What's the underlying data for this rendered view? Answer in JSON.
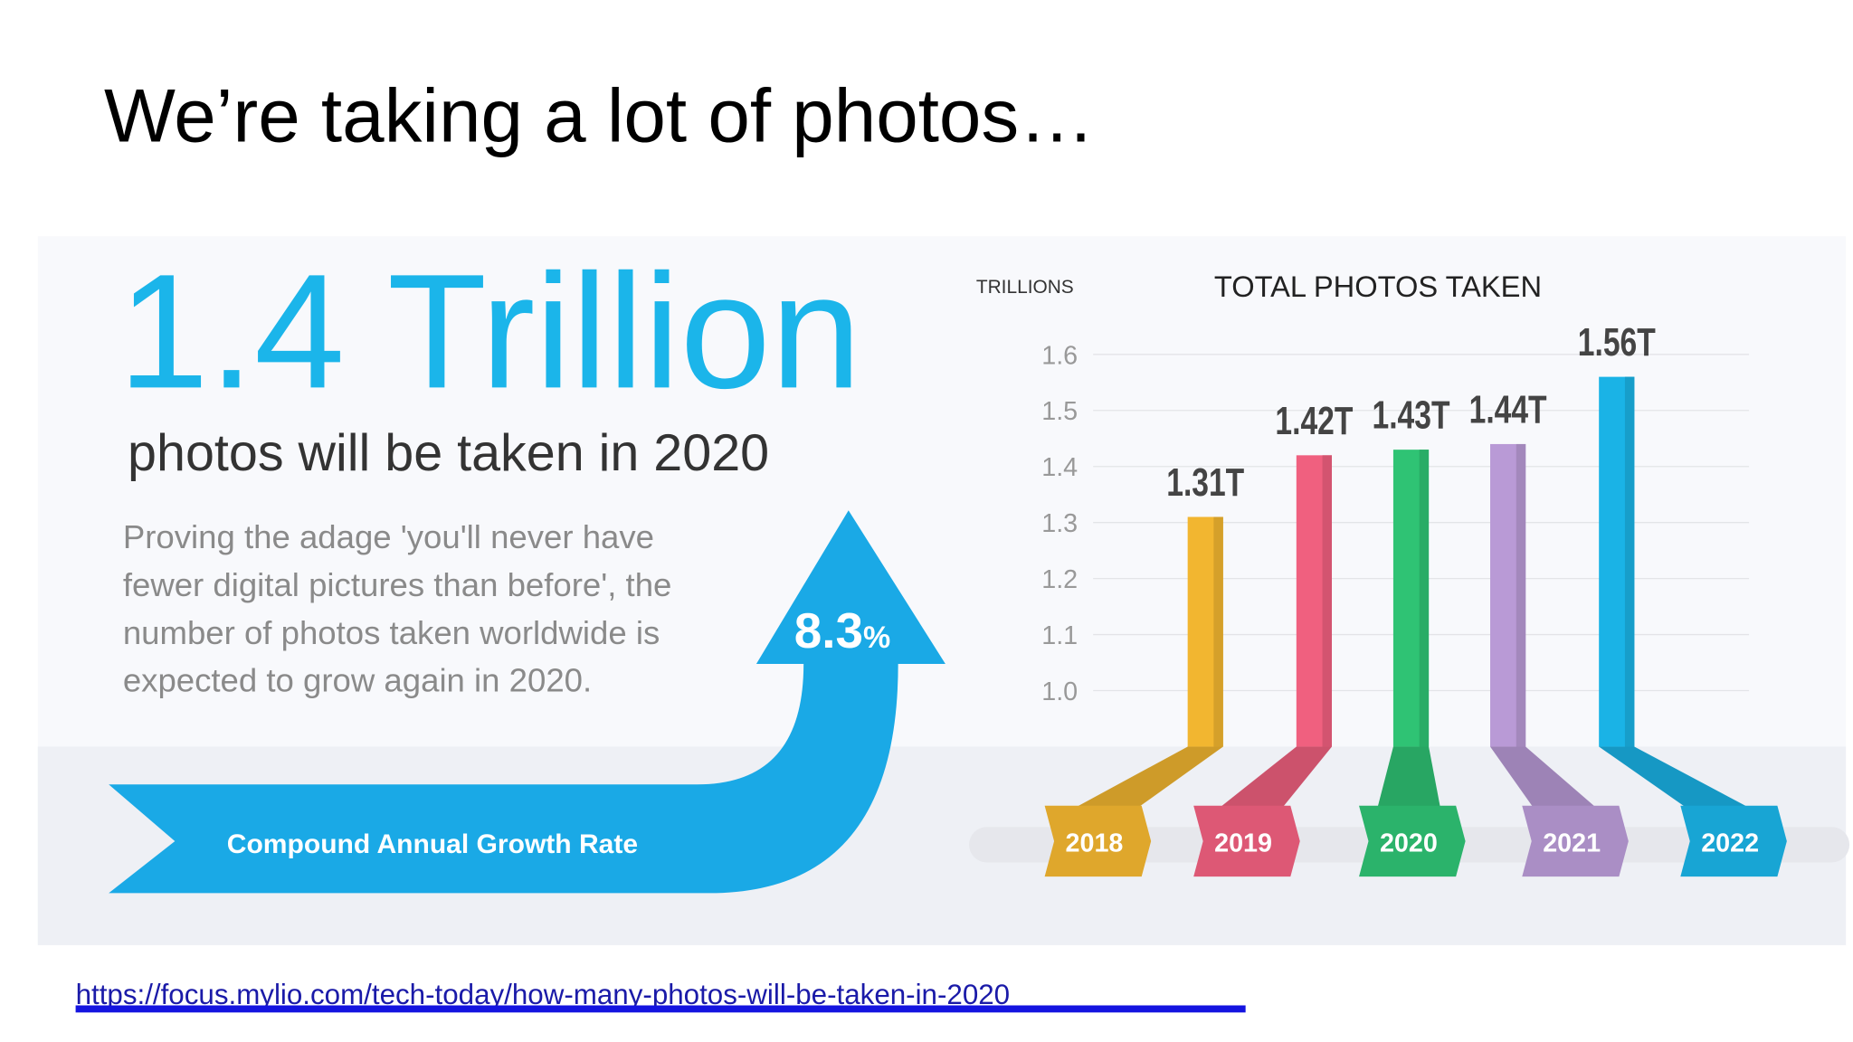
{
  "title": "We’re taking a lot of photos…",
  "headline": "1.4 Trillion",
  "subheadline": "photos will be taken in 2020",
  "body": [
    "Proving the adage 'you'll never have",
    "fewer digital pictures than before', the",
    "number of photos taken worldwide is",
    "expected to grow again in 2020."
  ],
  "cagr_value": "8.3",
  "cagr_unit": "%",
  "cagr_label": "Compound Annual Growth Rate",
  "link": "https://focus.mylio.com/tech-today/how-many-photos-will-be-taken-in-2020",
  "chart_data": {
    "type": "bar",
    "title": "TOTAL PHOTOS TAKEN",
    "y_label": "TRILLIONS",
    "categories": [
      "2018",
      "2019",
      "2020",
      "2021",
      "2022"
    ],
    "values": [
      1.31,
      1.42,
      1.43,
      1.44,
      1.56
    ],
    "value_labels": [
      "1.31T",
      "1.42T",
      "1.43T",
      "1.44T",
      "1.56T"
    ],
    "colors": [
      "#f2b630",
      "#f0607f",
      "#2fc374",
      "#b99ad6",
      "#1ab3e6"
    ],
    "ylim": [
      0.9,
      1.6
    ],
    "yticks": [
      {
        "value": 1,
        "label": "1.0"
      },
      1.1,
      1.2,
      1.3,
      1.4,
      1.5,
      1.6
    ],
    "grid": true
  }
}
